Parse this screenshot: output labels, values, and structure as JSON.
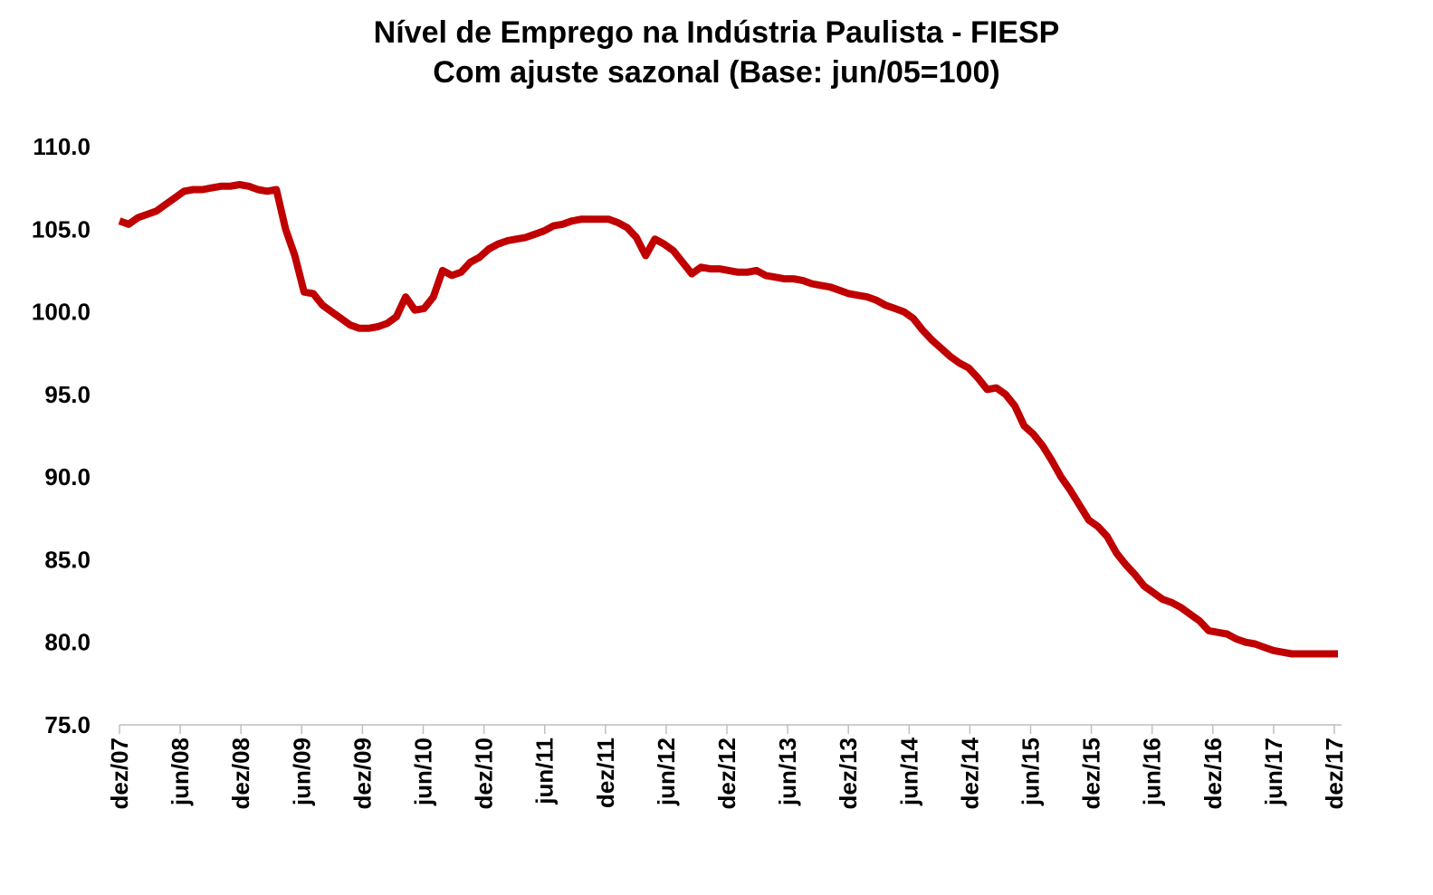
{
  "chart_data": {
    "type": "line",
    "title": "Nível de Emprego na Indústria Paulista - FIESP",
    "subtitle": "Com ajuste sazonal (Base: jun/05=100)",
    "xlabel": "",
    "ylabel": "",
    "ylim": [
      75.0,
      110.0
    ],
    "yticks": [
      "110.0",
      "105.0",
      "100.0",
      "95.0",
      "90.0",
      "85.0",
      "80.0",
      "75.0"
    ],
    "xticks": [
      "dez/07",
      "jun/08",
      "dez/08",
      "jun/09",
      "dez/09",
      "jun/10",
      "dez/10",
      "jun/11",
      "dez/11",
      "jun/12",
      "dez/12",
      "jun/13",
      "dez/13",
      "jun/14",
      "dez/14",
      "jun/15",
      "dez/15",
      "jun/16",
      "dez/16",
      "jun/17",
      "dez/17"
    ],
    "grid": false,
    "legend": "none",
    "line_color": "#C00000",
    "series": [
      {
        "values": [
          105.5,
          105.3,
          105.7,
          105.9,
          106.1,
          106.5,
          106.9,
          107.3,
          107.4,
          107.4,
          107.5,
          107.6,
          107.6,
          107.7,
          107.6,
          107.4,
          107.3,
          107.4,
          105.0,
          103.4,
          101.2,
          101.1,
          100.4,
          100.0,
          99.6,
          99.2,
          99.0,
          99.0,
          99.1,
          99.3,
          99.7,
          100.9,
          100.1,
          100.2,
          100.9,
          102.5,
          102.2,
          102.4,
          103.0,
          103.3,
          103.8,
          104.1,
          104.3,
          104.4,
          104.5,
          104.7,
          104.9,
          105.2,
          105.3,
          105.5,
          105.6,
          105.6,
          105.6,
          105.6,
          105.4,
          105.1,
          104.5,
          103.4,
          104.4,
          104.1,
          103.7,
          103.0,
          102.3,
          102.7,
          102.6,
          102.6,
          102.5,
          102.4,
          102.4,
          102.5,
          102.2,
          102.1,
          102.0,
          102.0,
          101.9,
          101.7,
          101.6,
          101.5,
          101.3,
          101.1,
          101.0,
          100.9,
          100.7,
          100.4,
          100.2,
          100.0,
          99.6,
          98.9,
          98.3,
          97.8,
          97.3,
          96.9,
          96.6,
          96.0,
          95.3,
          95.4,
          95.0,
          94.3,
          93.1,
          92.6,
          91.9,
          91.0,
          90.0,
          89.2,
          88.3,
          87.4,
          87.0,
          86.4,
          85.4,
          84.7,
          84.1,
          83.4,
          83.0,
          82.6,
          82.4,
          82.1,
          81.7,
          81.3,
          80.7,
          80.6,
          80.5,
          80.2,
          80.0,
          79.9,
          79.7,
          79.5,
          79.4,
          79.3,
          79.3,
          79.3,
          79.3,
          79.3,
          79.3
        ]
      }
    ]
  }
}
